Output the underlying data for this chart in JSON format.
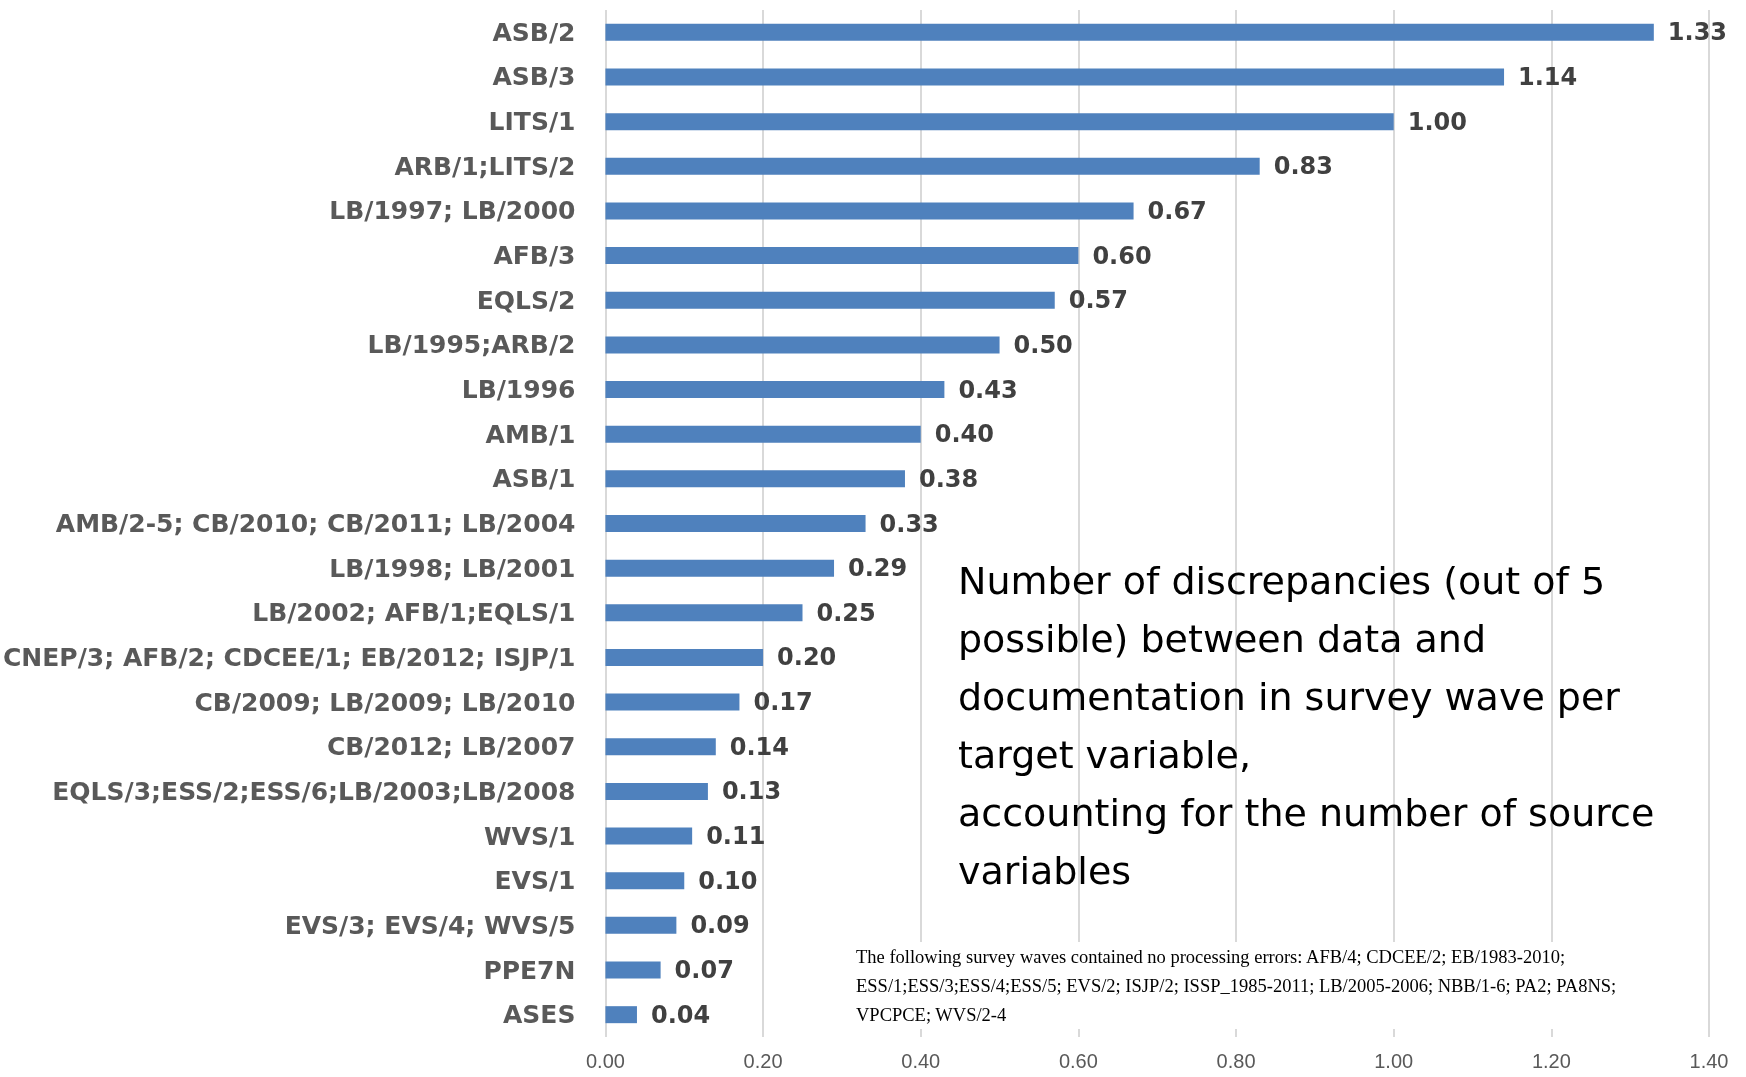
{
  "chart_data": {
    "type": "bar",
    "orientation": "horizontal",
    "categories": [
      "ASB/2",
      "ASB/3",
      "LITS/1",
      "ARB/1;LITS/2",
      "LB/1997; LB/2000",
      "AFB/3",
      "EQLS/2",
      "LB/1995;ARB/2",
      "LB/1996",
      "AMB/1",
      "ASB/1",
      "AMB/2-5; CB/2010; CB/2011; LB/2004",
      "LB/1998; LB/2001",
      "LB/2002; AFB/1;EQLS/1",
      "CNEP/3; AFB/2; CDCEE/1; EB/2012; ISJP/1",
      "CB/2009; LB/2009; LB/2010",
      "CB/2012; LB/2007",
      "EQLS/3;ESS/2;ESS/6;LB/2003;LB/2008",
      "WVS/1",
      "EVS/1",
      "EVS/3; EVS/4; WVS/5",
      "PPE7N",
      "ASES"
    ],
    "values": [
      1.33,
      1.14,
      1.0,
      0.83,
      0.67,
      0.6,
      0.57,
      0.5,
      0.43,
      0.4,
      0.38,
      0.33,
      0.29,
      0.25,
      0.2,
      0.17,
      0.14,
      0.13,
      0.11,
      0.1,
      0.09,
      0.07,
      0.04
    ],
    "value_labels": [
      "1.33",
      "1.14",
      "1.00",
      "0.83",
      "0.67",
      "0.60",
      "0.57",
      "0.50",
      "0.43",
      "0.40",
      "0.38",
      "0.33",
      "0.29",
      "0.25",
      "0.20",
      "0.17",
      "0.14",
      "0.13",
      "0.11",
      "0.10",
      "0.09",
      "0.07",
      "0.04"
    ],
    "color": "#4f81bd",
    "xlim": [
      0,
      1.4
    ],
    "xticks": [
      {
        "value": 0,
        "label": "0.00"
      },
      {
        "value": 0.2,
        "label": "0.20"
      },
      {
        "value": 0.4,
        "label": "0.40"
      },
      {
        "value": 0.6,
        "label": "0.60"
      },
      {
        "value": 0.8,
        "label": "0.80"
      },
      {
        "value": 1.0,
        "label": "1.00"
      },
      {
        "value": 1.2,
        "label": "1.20"
      },
      {
        "value": 1.4,
        "label": "1.40"
      }
    ],
    "grid": "x",
    "annotations": [
      "Number of discrepancies (out of 5\npossible) between data and\ndocumentation in survey wave per\ntarget variable,\naccounting for the number of source\nvariables",
      "The following survey waves contained no processing errors: AFB/4; CDCEE/2; EB/1983-2010;\nESS/1;ESS/3;ESS/4;ESS/5; EVS/2; ISJP/2; ISSP_1985-2011; LB/2005-2006; NBB/1-6; PA2; PA8NS;\nVPCPCE; WVS/2-4"
    ]
  }
}
